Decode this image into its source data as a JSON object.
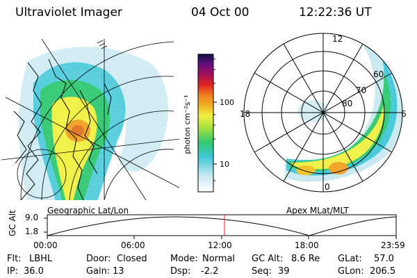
{
  "header": {
    "instrument": "Ultraviolet Imager",
    "date": "04 Oct 00",
    "time": "12:22:36 UT"
  },
  "colorbar": {
    "label": "photon cm⁻²s⁻¹",
    "ticks": [
      "100",
      "10"
    ],
    "scale": "log",
    "colors": [
      "#ffffff",
      "#c8e8f0",
      "#40c8d8",
      "#30c870",
      "#a0e040",
      "#f0f040",
      "#f0b020",
      "#f08020",
      "#e02020",
      "#a01060",
      "#601080",
      "#101040"
    ]
  },
  "left_panel": {
    "caption": "Geographic Lat/Lon",
    "grid_marker": "///"
  },
  "right_panel": {
    "caption": "Apex MLat/MLT",
    "mlt_labels": {
      "top": "12",
      "left": "18",
      "right": "6",
      "bottom": "0"
    },
    "lat_labels": [
      "60",
      "70",
      "80"
    ]
  },
  "altitude_plot": {
    "ylabel": "GC Alt",
    "yticks": [
      "9.0",
      "1.8"
    ],
    "xticks": [
      "00:00",
      "06:00",
      "12:00",
      "18:00",
      "23:59"
    ],
    "current_time_marker": "12:22",
    "marker_color": "#e02020"
  },
  "status": {
    "row1": [
      {
        "label": "Flt:",
        "value": "LBHL"
      },
      {
        "label": "Door:",
        "value": "Closed"
      },
      {
        "label": "Mode:",
        "value": "Normal"
      },
      {
        "label": "GC Alt:",
        "value": "8.6 Re"
      },
      {
        "label": "GLat:",
        "value": "57.0"
      }
    ],
    "row2": [
      {
        "label": "IP:",
        "value": "36.0"
      },
      {
        "label": "Gain:",
        "value": "13"
      },
      {
        "label": "Dsp:",
        "value": "-2.2"
      },
      {
        "label": "Seq:",
        "value": "39"
      },
      {
        "label": "GLon:",
        "value": "206.5"
      }
    ]
  }
}
